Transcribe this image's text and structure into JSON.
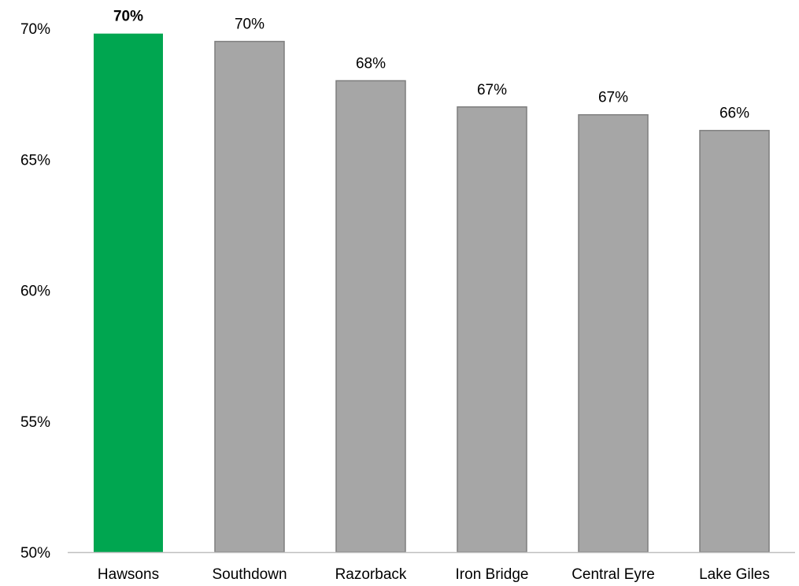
{
  "chart_data": {
    "type": "bar",
    "title": "",
    "xlabel": "",
    "ylabel": "",
    "categories": [
      "Hawsons",
      "Southdown",
      "Razorback",
      "Iron Bridge",
      "Central Eyre",
      "Lake Giles"
    ],
    "values": [
      69.8,
      69.5,
      68.0,
      67.0,
      66.7,
      66.1
    ],
    "data_labels": [
      "70%",
      "70%",
      "68%",
      "67%",
      "67%",
      "66%"
    ],
    "ylim": [
      50,
      70
    ],
    "y_ticks": [
      50,
      55,
      60,
      65,
      70
    ],
    "y_tick_labels": [
      "50%",
      "55%",
      "60%",
      "65%",
      "70%"
    ],
    "grid": false,
    "legend": "none",
    "highlight_index": 0,
    "colors": {
      "highlight": "#00A650",
      "default": "#A6A6A6",
      "bar_border": "#7F7F7F",
      "axis": "#BFBFBF",
      "highlight_label": "#00A650",
      "label": "#000000"
    }
  }
}
